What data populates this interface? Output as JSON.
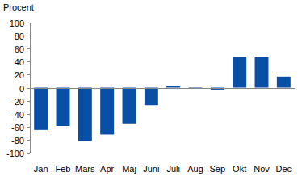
{
  "chart_data": {
    "type": "bar",
    "ylabel": "Procent",
    "categories": [
      "Jan",
      "Feb",
      "Mars",
      "Apr",
      "Maj",
      "Juni",
      "Juli",
      "Aug",
      "Sep",
      "Okt",
      "Nov",
      "Dec"
    ],
    "values": [
      -65,
      -59,
      -82,
      -72,
      -55,
      -27,
      2,
      -1,
      -3,
      47,
      47,
      17
    ],
    "color": "#0a4fa6",
    "ylim": [
      -100,
      100
    ],
    "yticks": [
      -100,
      -80,
      -60,
      -40,
      -20,
      0,
      20,
      40,
      60,
      80,
      100
    ],
    "grid": false
  }
}
